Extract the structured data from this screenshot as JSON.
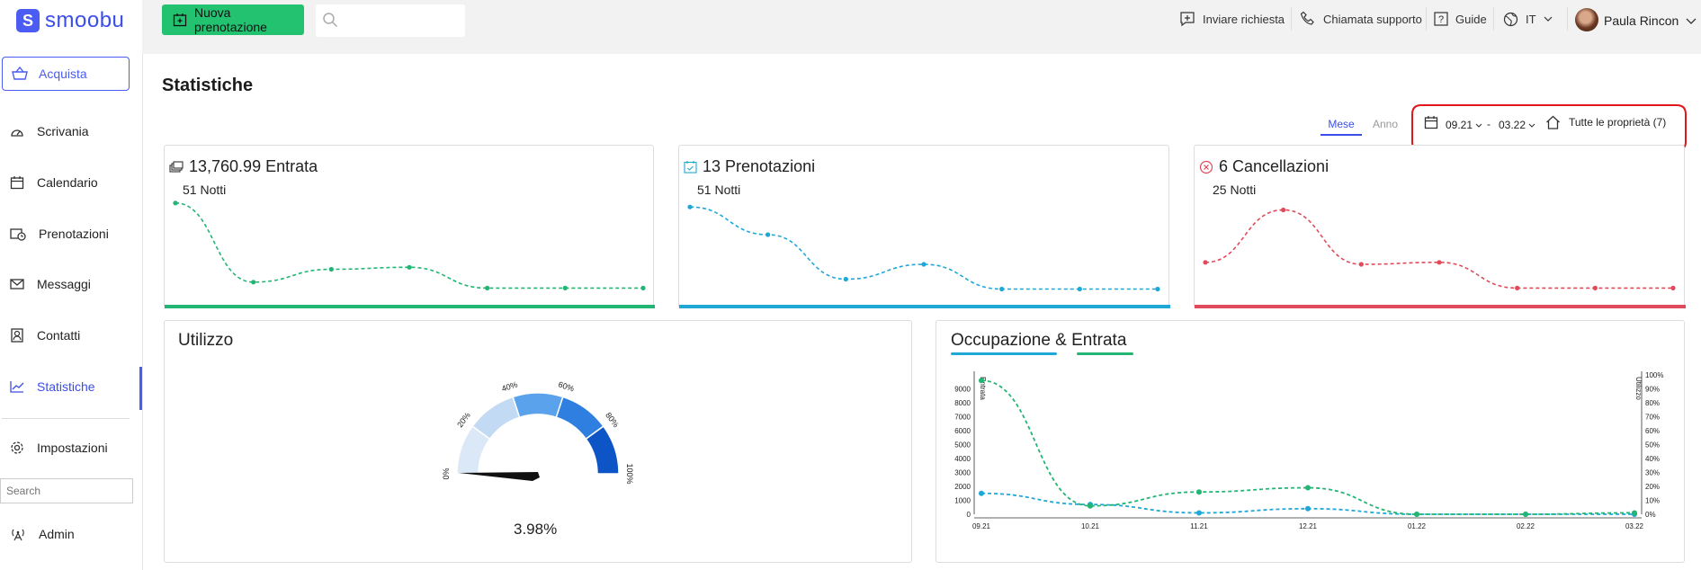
{
  "app": {
    "logo_text": "smoobu",
    "logo_mark": "S",
    "brand_color": "#4a5cf2",
    "green": "#22c271"
  },
  "sidebar": {
    "buy_label": "Acquista",
    "items": [
      {
        "label": "Scrivania",
        "icon": "dashboard-icon"
      },
      {
        "label": "Calendario",
        "icon": "calendar-icon"
      },
      {
        "label": "Prenotazioni",
        "icon": "bookings-icon"
      },
      {
        "label": "Messaggi",
        "icon": "mail-icon"
      },
      {
        "label": "Contatti",
        "icon": "contacts-icon"
      },
      {
        "label": "Statistiche",
        "icon": "chart-icon"
      },
      {
        "label": "Impostazioni",
        "icon": "gear-icon"
      }
    ],
    "search_placeholder": "Search",
    "admin_label": "Admin"
  },
  "topbar": {
    "new_booking_label": "Nuova prenotazione",
    "send_request": "Inviare richiesta",
    "support_call": "Chiamata supporto",
    "guides": "Guide",
    "language": "IT",
    "user_name": "Paula Rincon"
  },
  "page": {
    "title": "Statistiche",
    "tab_month": "Mese",
    "tab_year": "Anno",
    "date_from": "09.21",
    "date_sep": "-",
    "date_to": "03.22",
    "properties": "Tutte le proprietà (7)"
  },
  "kpis": {
    "revenue": {
      "title": "13,760.99 Entrata",
      "sub": "51 Notti",
      "color": "#22b573",
      "values": [
        92,
        12,
        25,
        27,
        6,
        6,
        6
      ]
    },
    "bookings": {
      "title": "13 Prenotazioni",
      "sub": "51 Notti",
      "color": "#1fa8d6",
      "values": [
        88,
        60,
        15,
        30,
        5,
        5,
        5
      ]
    },
    "cancellations": {
      "title": "6 Cancellazioni",
      "sub": "25 Notti",
      "color": "#e04a5a",
      "values": [
        32,
        85,
        30,
        32,
        6,
        6,
        6
      ]
    }
  },
  "usage": {
    "title": "Utilizzo",
    "value_label": "3.98%",
    "value": 3.98,
    "tick_labels": [
      "0%",
      "20%",
      "40%",
      "60%",
      "80%",
      "100%"
    ]
  },
  "chart_data": {
    "type": "line",
    "title": "Occupazione & Entrata",
    "categories": [
      "09.21",
      "10.21",
      "11.21",
      "12.21",
      "01.22",
      "02.22",
      "03.22"
    ],
    "ylabel": "Entrata",
    "y2label": "Utilizzo",
    "ylim": [
      0,
      10000
    ],
    "y_ticks": [
      "0",
      "1000",
      "2000",
      "3000",
      "4000",
      "5000",
      "6000",
      "7000",
      "8000",
      "9000"
    ],
    "y2lim": [
      0,
      100
    ],
    "y2_ticks": [
      "0%",
      "10%",
      "20%",
      "30%",
      "40%",
      "50%",
      "60%",
      "70%",
      "80%",
      "90%",
      "100%"
    ],
    "series": [
      {
        "name": "Occupazione",
        "color": "#1fa8d6",
        "axis": "right",
        "values": [
          15,
          7,
          1,
          4,
          0,
          0,
          0
        ]
      },
      {
        "name": "Entrata",
        "color": "#22b573",
        "axis": "left",
        "values": [
          9600,
          600,
          1600,
          1900,
          0,
          0,
          100
        ]
      }
    ]
  }
}
